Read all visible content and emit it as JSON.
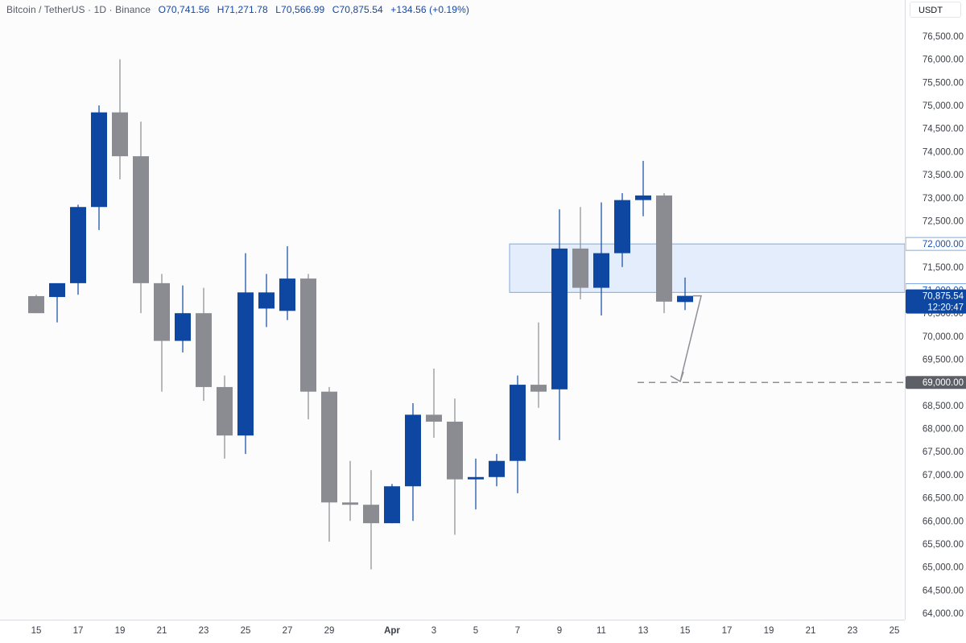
{
  "header": {
    "symbol": "Bitcoin / TetherUS · 1D · Binance",
    "open": "O70,741.56",
    "high": "H71,271.78",
    "low": "L70,566.99",
    "close": "C70,875.54",
    "change": "+134.56 (+0.19%)"
  },
  "currency": "USDT",
  "colors": {
    "up": "#0d47a1",
    "down": "#8a8c92",
    "zone": "#dbe8fa",
    "zone_border": "#7fa8e3",
    "label_blue": "#1553b4",
    "label_gray": "#5c5f66"
  },
  "price_labels": {
    "zone_top": "72,000.00",
    "zone_bottom": "71,000.00",
    "current": "70,875.54",
    "countdown": "12:20:47",
    "target": "69,000.00"
  },
  "chart_data": {
    "type": "candlestick",
    "ylim": [
      64000,
      76500
    ],
    "y_ticks": [
      "76,500.00",
      "76,000.00",
      "75,500.00",
      "75,000.00",
      "74,500.00",
      "74,000.00",
      "73,500.00",
      "73,000.00",
      "72,500.00",
      "72,000.00",
      "71,500.00",
      "71,000.00",
      "70,500.00",
      "70,000.00",
      "69,500.00",
      "69,000.00",
      "68,500.00",
      "68,000.00",
      "67,500.00",
      "67,000.00",
      "66,500.00",
      "66,000.00",
      "65,500.00",
      "65,000.00",
      "64,500.00",
      "64,000.00"
    ],
    "y_tick_values": [
      76500,
      76000,
      75500,
      75000,
      74500,
      74000,
      73500,
      73000,
      72500,
      72000,
      71500,
      71000,
      70500,
      70000,
      69500,
      69000,
      68500,
      68000,
      67500,
      67000,
      66500,
      66000,
      65500,
      65000,
      64500,
      64000
    ],
    "x_labels": [
      {
        "i": 0,
        "t": "15"
      },
      {
        "i": 2,
        "t": "17"
      },
      {
        "i": 4,
        "t": "19"
      },
      {
        "i": 6,
        "t": "21"
      },
      {
        "i": 8,
        "t": "23"
      },
      {
        "i": 10,
        "t": "25"
      },
      {
        "i": 12,
        "t": "27"
      },
      {
        "i": 14,
        "t": "29"
      },
      {
        "i": 17,
        "t": "Apr"
      },
      {
        "i": 19,
        "t": "3"
      },
      {
        "i": 21,
        "t": "5"
      },
      {
        "i": 23,
        "t": "7"
      },
      {
        "i": 25,
        "t": "9"
      },
      {
        "i": 27,
        "t": "11"
      },
      {
        "i": 29,
        "t": "13"
      },
      {
        "i": 31,
        "t": "15"
      },
      {
        "i": 33,
        "t": "17"
      },
      {
        "i": 35,
        "t": "19"
      },
      {
        "i": 37,
        "t": "21"
      },
      {
        "i": 39,
        "t": "23"
      },
      {
        "i": 41,
        "t": "25"
      }
    ],
    "candles": [
      {
        "o": 70870,
        "h": 70900,
        "l": 70500,
        "c": 70500
      },
      {
        "o": 70850,
        "h": 71100,
        "l": 70300,
        "c": 71150
      },
      {
        "o": 71150,
        "h": 72850,
        "l": 70900,
        "c": 72800
      },
      {
        "o": 72800,
        "h": 75000,
        "l": 72300,
        "c": 74850
      },
      {
        "o": 74850,
        "h": 76000,
        "l": 73400,
        "c": 73900
      },
      {
        "o": 73900,
        "h": 74650,
        "l": 70500,
        "c": 71150
      },
      {
        "o": 71150,
        "h": 71350,
        "l": 68800,
        "c": 69900
      },
      {
        "o": 69900,
        "h": 71100,
        "l": 69650,
        "c": 70500
      },
      {
        "o": 70500,
        "h": 71050,
        "l": 68600,
        "c": 68900
      },
      {
        "o": 68900,
        "h": 69150,
        "l": 67350,
        "c": 67850
      },
      {
        "o": 67850,
        "h": 71800,
        "l": 67450,
        "c": 70950
      },
      {
        "o": 70600,
        "h": 71350,
        "l": 70200,
        "c": 70950
      },
      {
        "o": 70550,
        "h": 71950,
        "l": 70350,
        "c": 71250
      },
      {
        "o": 71250,
        "h": 71350,
        "l": 68200,
        "c": 68800
      },
      {
        "o": 68800,
        "h": 68900,
        "l": 65550,
        "c": 66400
      },
      {
        "o": 66400,
        "h": 67300,
        "l": 66000,
        "c": 66350
      },
      {
        "o": 66350,
        "h": 67100,
        "l": 64950,
        "c": 65950
      },
      {
        "o": 65950,
        "h": 66800,
        "l": 65950,
        "c": 66750
      },
      {
        "o": 66750,
        "h": 68550,
        "l": 66000,
        "c": 68300
      },
      {
        "o": 68300,
        "h": 69300,
        "l": 67800,
        "c": 68150
      },
      {
        "o": 68150,
        "h": 68650,
        "l": 65700,
        "c": 66900
      },
      {
        "o": 66900,
        "h": 67350,
        "l": 66250,
        "c": 66950
      },
      {
        "o": 66950,
        "h": 67450,
        "l": 66750,
        "c": 67300
      },
      {
        "o": 67300,
        "h": 69150,
        "l": 66600,
        "c": 68950
      },
      {
        "o": 68950,
        "h": 70300,
        "l": 68450,
        "c": 68800
      },
      {
        "o": 68850,
        "h": 72750,
        "l": 67750,
        "c": 71900
      },
      {
        "o": 71900,
        "h": 72800,
        "l": 70800,
        "c": 71050
      },
      {
        "o": 71050,
        "h": 72900,
        "l": 70450,
        "c": 71800
      },
      {
        "o": 71800,
        "h": 73100,
        "l": 71500,
        "c": 72950
      },
      {
        "o": 72950,
        "h": 73800,
        "l": 72600,
        "c": 73050
      },
      {
        "o": 73050,
        "h": 73100,
        "l": 70500,
        "c": 70750
      },
      {
        "o": 70741.56,
        "h": 71271.78,
        "l": 70566.99,
        "c": 70875.54
      }
    ]
  }
}
